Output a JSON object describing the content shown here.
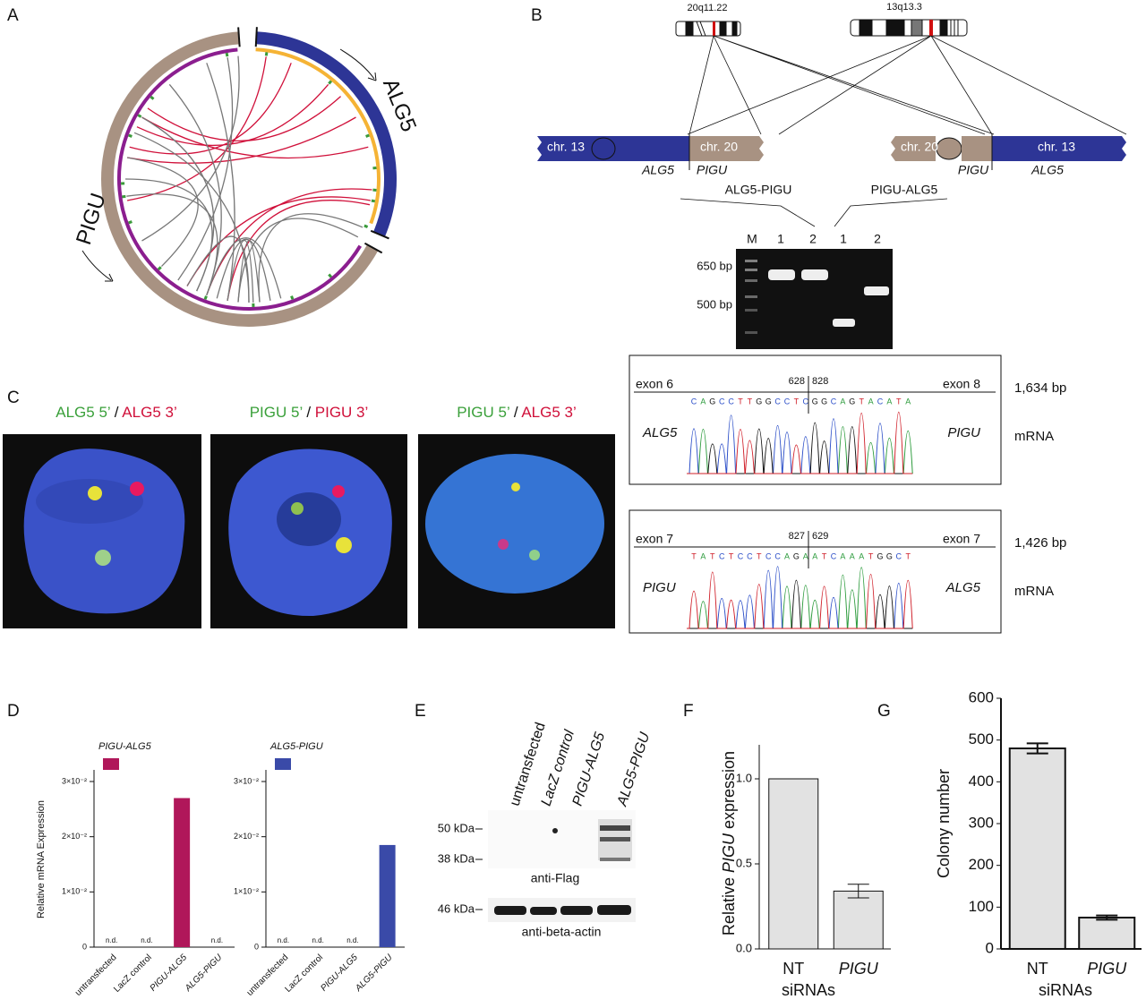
{
  "panel_a": {
    "letter": "A",
    "gene_top": "ALG5",
    "gene_left": "PIGU"
  },
  "panel_b": {
    "letter": "B",
    "bands": [
      "20q11.22",
      "13q13.3"
    ],
    "derivatives": [
      {
        "left": "chr. 13",
        "right": "chr. 20",
        "gene_left": "ALG5",
        "gene_right": "PIGU"
      },
      {
        "left": "chr. 20",
        "right": "chr. 13",
        "gene_left": "PIGU",
        "gene_right": "ALG5"
      }
    ],
    "fusions": [
      "ALG5-PIGU",
      "PIGU-ALG5"
    ],
    "gel": {
      "lanes": [
        "M",
        "1",
        "2",
        "1",
        "2"
      ],
      "markers": [
        "650 bp",
        "500 bp"
      ]
    },
    "sequences": [
      {
        "exon_left": "exon 6",
        "exon_right": "exon 8",
        "pos_left": "628",
        "pos_right": "828",
        "sequence": [
          "C",
          "A",
          "G",
          "C",
          "C",
          "T",
          "T",
          "G",
          "G",
          "C",
          "C",
          "T",
          "C",
          "G",
          "G",
          "C",
          "A",
          "G",
          "T",
          "A",
          "C",
          "A",
          "T",
          "A"
        ],
        "gene_left": "ALG5",
        "gene_right": "PIGU",
        "size": "1,634 bp",
        "kind": "mRNA"
      },
      {
        "exon_left": "exon 7",
        "exon_right": "exon 7",
        "pos_left": "827",
        "pos_right": "629",
        "sequence": [
          "T",
          "A",
          "T",
          "C",
          "T",
          "C",
          "C",
          "T",
          "C",
          "C",
          "A",
          "G",
          "A",
          "A",
          "T",
          "C",
          "A",
          "A",
          "A",
          "T",
          "G",
          "G",
          "C",
          "T"
        ],
        "gene_left": "PIGU",
        "gene_right": "ALG5",
        "size": "1,426 bp",
        "kind": "mRNA"
      }
    ]
  },
  "panel_c": {
    "letter": "C",
    "captions": [
      {
        "green": "ALG5 5’",
        "sep": " / ",
        "red": "ALG5 3’"
      },
      {
        "green": "PIGU 5’",
        "sep": " / ",
        "red": "PIGU 3’"
      },
      {
        "green": "PIGU 5’",
        "sep": " / ",
        "red": "ALG5 3’"
      }
    ]
  },
  "panel_d": {
    "letter": "D",
    "ylabel": "Relative mRNA Expression",
    "charts": [
      {
        "type": "bar",
        "legend": "PIGU-ALG5",
        "color": "#b0175a",
        "categories": [
          "untransfected",
          "LacZ control",
          "PIGU-ALG5",
          "ALG5-PIGU"
        ],
        "values": [
          null,
          null,
          0.027,
          null
        ],
        "value_labels": [
          "n.d.",
          "n.d.",
          null,
          "n.d."
        ],
        "ylim": [
          0,
          0.03
        ],
        "yticks": [
          0,
          {
            "value": 0.01,
            "label": "1×10⁻²"
          },
          {
            "value": 0.02,
            "label": "2×10⁻²"
          },
          {
            "value": 0.03,
            "label": "3×10⁻²"
          }
        ]
      },
      {
        "type": "bar",
        "legend": "ALG5-PIGU",
        "color": "#3a4aa8",
        "categories": [
          "untransfected",
          "LacZ control",
          "PIGU-ALG5",
          "ALG5-PIGU"
        ],
        "values": [
          null,
          null,
          null,
          0.0185
        ],
        "value_labels": [
          "n.d.",
          "n.d.",
          "n.d.",
          null
        ],
        "ylim": [
          0,
          0.03
        ],
        "yticks": [
          0,
          {
            "value": 0.01,
            "label": "1×10⁻²"
          },
          {
            "value": 0.02,
            "label": "2×10⁻²"
          },
          {
            "value": 0.03,
            "label": "3×10⁻²"
          }
        ]
      }
    ]
  },
  "panel_e": {
    "letter": "E",
    "lanes": [
      "untransfected",
      "LacZ control",
      "PIGU-ALG5",
      "ALG5-PIGU"
    ],
    "markers": [
      "50 kDa",
      "38 kDa",
      "46 kDa"
    ],
    "antibodies": [
      "anti-Flag",
      "anti-beta-actin"
    ]
  },
  "panel_f": {
    "letter": "F",
    "type": "bar",
    "ylabel": [
      "Relative ",
      "PIGU",
      " expression"
    ],
    "xlabel": "siRNAs",
    "categories": [
      "NT",
      "PIGU"
    ],
    "values": [
      1.0,
      0.34
    ],
    "errors": [
      0,
      0.04
    ],
    "color": "#e2e2e2",
    "ylim": [
      0,
      1.2
    ],
    "yticks": [
      {
        "value": 0,
        "label": "0.0"
      },
      0.5,
      {
        "value": 1,
        "label": "1.0"
      }
    ]
  },
  "panel_g": {
    "letter": "G",
    "type": "bar",
    "ylabel": "Colony number",
    "xlabel": "siRNAs",
    "categories": [
      "NT",
      "PIGU"
    ],
    "values": [
      480,
      75
    ],
    "errors": [
      12,
      5
    ],
    "color": "#e2e2e2",
    "ylim": [
      0,
      600
    ],
    "yticks": [
      0,
      100,
      200,
      300,
      400,
      500,
      600
    ]
  }
}
